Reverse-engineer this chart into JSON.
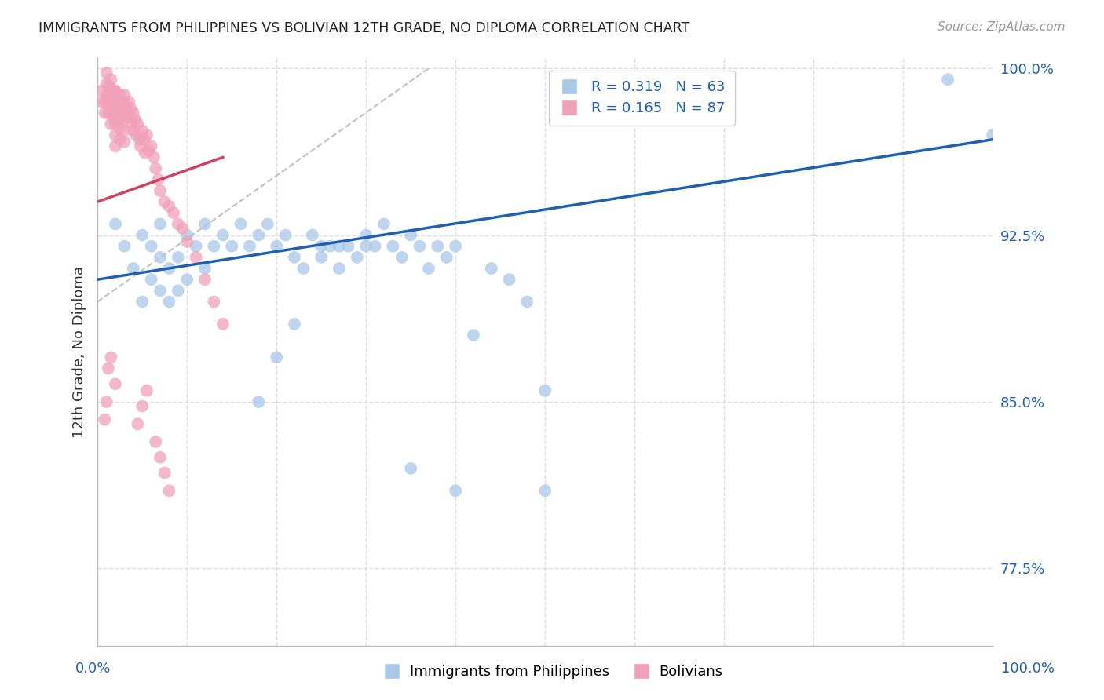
{
  "title": "IMMIGRANTS FROM PHILIPPINES VS BOLIVIAN 12TH GRADE, NO DIPLOMA CORRELATION CHART",
  "source": "Source: ZipAtlas.com",
  "ylabel": "12th Grade, No Diploma",
  "x_min": 0.0,
  "x_max": 1.0,
  "y_min": 0.74,
  "y_max": 1.005,
  "y_ticks": [
    0.775,
    0.85,
    0.925,
    1.0
  ],
  "y_tick_labels": [
    "77.5%",
    "85.0%",
    "92.5%",
    "100.0%"
  ],
  "legend_r1": "R = 0.319",
  "legend_n1": "N = 63",
  "legend_r2": "R = 0.165",
  "legend_n2": "N = 87",
  "blue_color": "#a8c8e8",
  "pink_color": "#f0a0b8",
  "blue_line_color": "#2060b0",
  "pink_line_color": "#d04060",
  "grid_color": "#dddddd",
  "title_color": "#222222",
  "source_color": "#999999",
  "axis_label_color": "#2060b0",
  "blue_scatter_x": [
    0.02,
    0.03,
    0.04,
    0.05,
    0.05,
    0.06,
    0.06,
    0.07,
    0.07,
    0.07,
    0.08,
    0.08,
    0.09,
    0.09,
    0.1,
    0.1,
    0.11,
    0.12,
    0.12,
    0.13,
    0.14,
    0.15,
    0.16,
    0.17,
    0.18,
    0.19,
    0.2,
    0.21,
    0.22,
    0.23,
    0.24,
    0.25,
    0.26,
    0.27,
    0.28,
    0.29,
    0.3,
    0.31,
    0.32,
    0.33,
    0.34,
    0.35,
    0.36,
    0.37,
    0.38,
    0.39,
    0.4,
    0.42,
    0.44,
    0.46,
    0.48,
    0.5,
    0.3,
    0.27,
    0.25,
    0.22,
    0.2,
    0.18,
    0.35,
    0.4,
    0.5,
    0.95,
    1.0
  ],
  "blue_scatter_y": [
    0.93,
    0.92,
    0.91,
    0.925,
    0.895,
    0.92,
    0.905,
    0.93,
    0.915,
    0.9,
    0.91,
    0.895,
    0.915,
    0.9,
    0.925,
    0.905,
    0.92,
    0.93,
    0.91,
    0.92,
    0.925,
    0.92,
    0.93,
    0.92,
    0.925,
    0.93,
    0.92,
    0.925,
    0.915,
    0.91,
    0.925,
    0.915,
    0.92,
    0.91,
    0.92,
    0.915,
    0.925,
    0.92,
    0.93,
    0.92,
    0.915,
    0.925,
    0.92,
    0.91,
    0.92,
    0.915,
    0.92,
    0.88,
    0.91,
    0.905,
    0.895,
    0.855,
    0.92,
    0.92,
    0.92,
    0.885,
    0.87,
    0.85,
    0.82,
    0.81,
    0.81,
    0.995,
    0.97
  ],
  "pink_scatter_x": [
    0.005,
    0.005,
    0.008,
    0.008,
    0.01,
    0.01,
    0.01,
    0.012,
    0.012,
    0.013,
    0.013,
    0.015,
    0.015,
    0.015,
    0.015,
    0.015,
    0.018,
    0.018,
    0.018,
    0.02,
    0.02,
    0.02,
    0.02,
    0.02,
    0.02,
    0.022,
    0.022,
    0.023,
    0.025,
    0.025,
    0.025,
    0.025,
    0.025,
    0.027,
    0.027,
    0.028,
    0.028,
    0.03,
    0.03,
    0.03,
    0.03,
    0.03,
    0.032,
    0.033,
    0.035,
    0.035,
    0.037,
    0.038,
    0.04,
    0.04,
    0.042,
    0.043,
    0.045,
    0.047,
    0.048,
    0.05,
    0.052,
    0.053,
    0.055,
    0.057,
    0.06,
    0.063,
    0.065,
    0.068,
    0.07,
    0.075,
    0.08,
    0.085,
    0.09,
    0.095,
    0.1,
    0.11,
    0.12,
    0.13,
    0.14,
    0.015,
    0.02,
    0.01,
    0.008,
    0.012,
    0.055,
    0.05,
    0.045,
    0.065,
    0.07,
    0.075,
    0.08
  ],
  "pink_scatter_y": [
    0.99,
    0.985,
    0.985,
    0.98,
    0.998,
    0.993,
    0.988,
    0.985,
    0.98,
    0.992,
    0.986,
    0.995,
    0.99,
    0.985,
    0.98,
    0.975,
    0.99,
    0.985,
    0.978,
    0.99,
    0.985,
    0.98,
    0.975,
    0.97,
    0.965,
    0.988,
    0.982,
    0.977,
    0.988,
    0.983,
    0.978,
    0.973,
    0.968,
    0.985,
    0.98,
    0.985,
    0.978,
    0.988,
    0.982,
    0.977,
    0.972,
    0.967,
    0.983,
    0.978,
    0.985,
    0.978,
    0.982,
    0.975,
    0.98,
    0.972,
    0.977,
    0.97,
    0.975,
    0.968,
    0.965,
    0.972,
    0.968,
    0.962,
    0.97,
    0.963,
    0.965,
    0.96,
    0.955,
    0.95,
    0.945,
    0.94,
    0.938,
    0.935,
    0.93,
    0.928,
    0.922,
    0.915,
    0.905,
    0.895,
    0.885,
    0.87,
    0.858,
    0.85,
    0.842,
    0.865,
    0.855,
    0.848,
    0.84,
    0.832,
    0.825,
    0.818,
    0.81
  ],
  "blue_line_x": [
    0.0,
    1.0
  ],
  "blue_line_y": [
    0.905,
    0.968
  ],
  "pink_line_x": [
    0.0,
    0.14
  ],
  "pink_line_y": [
    0.94,
    0.96
  ],
  "gray_line_x": [
    0.0,
    0.37
  ],
  "gray_line_y": [
    0.895,
    1.0
  ]
}
